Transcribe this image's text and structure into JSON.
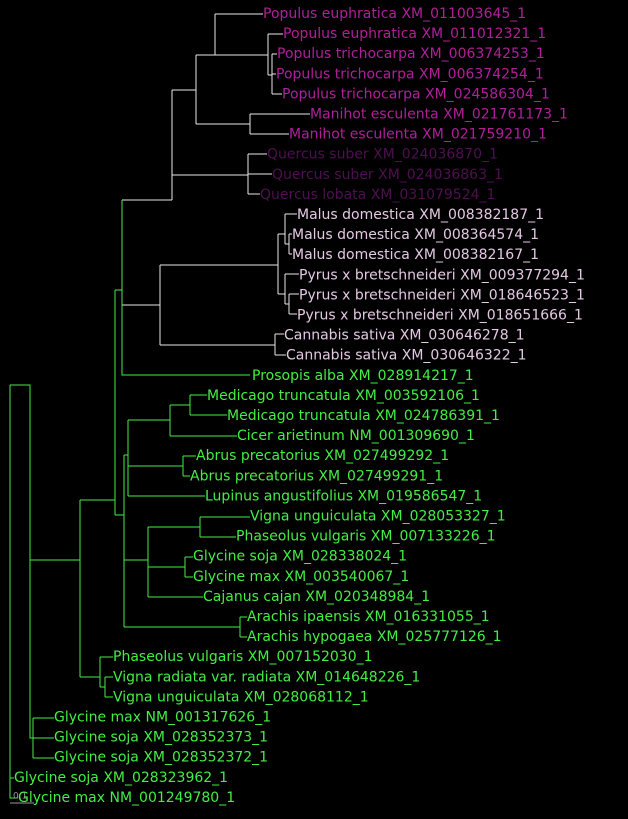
{
  "tree": {
    "scale_label": "0.1",
    "leaves": [
      {
        "label": "Populus euphratica XM_011003645_1",
        "color": "#b0209a"
      },
      {
        "label": "Populus euphratica XM_011012321_1",
        "color": "#b0209a"
      },
      {
        "label": "Populus trichocarpa XM_006374253_1",
        "color": "#b0209a"
      },
      {
        "label": "Populus trichocarpa XM_006374254_1",
        "color": "#b0209a"
      },
      {
        "label": "Populus trichocarpa XM_024586304_1",
        "color": "#b0209a"
      },
      {
        "label": "Manihot esculenta XM_021761173_1",
        "color": "#b0209a"
      },
      {
        "label": "Manihot esculenta XM_021759210_1",
        "color": "#b0209a"
      },
      {
        "label": "Quercus suber XM_024036870_1",
        "color": "#4e1050"
      },
      {
        "label": "Quercus suber XM_024036863_1",
        "color": "#4e1050"
      },
      {
        "label": "Quercus lobata XM_031079524_1",
        "color": "#4e1050"
      },
      {
        "label": "Malus domestica XM_008382187_1",
        "color": "#e4c8e4"
      },
      {
        "label": "Malus domestica XM_008364574_1",
        "color": "#e4c8e4"
      },
      {
        "label": "Malus domestica XM_008382167_1",
        "color": "#e4c8e4"
      },
      {
        "label": "Pyrus x bretschneideri XM_009377294_1",
        "color": "#e4c8e4"
      },
      {
        "label": "Pyrus x bretschneideri XM_018646523_1",
        "color": "#e4c8e4"
      },
      {
        "label": "Pyrus x bretschneideri XM_018651666_1",
        "color": "#e4c8e4"
      },
      {
        "label": "Cannabis sativa XM_030646278_1",
        "color": "#e4c8e4"
      },
      {
        "label": "Cannabis sativa XM_030646322_1",
        "color": "#e4c8e4"
      },
      {
        "label": "Prosopis alba XM_028914217_1",
        "color": "#44ee44"
      },
      {
        "label": "Medicago truncatula XM_003592106_1",
        "color": "#44ee44"
      },
      {
        "label": "Medicago truncatula XM_024786391_1",
        "color": "#44ee44"
      },
      {
        "label": "Cicer arietinum NM_001309690_1",
        "color": "#44ee44"
      },
      {
        "label": "Abrus precatorius XM_027499292_1",
        "color": "#44ee44"
      },
      {
        "label": "Abrus precatorius XM_027499291_1",
        "color": "#44ee44"
      },
      {
        "label": "Lupinus angustifolius XM_019586547_1",
        "color": "#44ee44"
      },
      {
        "label": "Vigna unguiculata XM_028053327_1",
        "color": "#44ee44"
      },
      {
        "label": "Phaseolus vulgaris XM_007133226_1",
        "color": "#44ee44"
      },
      {
        "label": "Glycine soja XM_028338024_1",
        "color": "#44ee44"
      },
      {
        "label": "Glycine max XM_003540067_1",
        "color": "#44ee44"
      },
      {
        "label": "Cajanus cajan XM_020348984_1",
        "color": "#44ee44"
      },
      {
        "label": "Arachis ipaensis XM_016331055_1",
        "color": "#44ee44"
      },
      {
        "label": "Arachis hypogaea XM_025777126_1",
        "color": "#44ee44"
      },
      {
        "label": "Phaseolus vulgaris XM_007152030_1",
        "color": "#44ee44"
      },
      {
        "label": "Vigna radiata var. radiata XM_014648226_1",
        "color": "#44ee44"
      },
      {
        "label": "Vigna unguiculata XM_028068112_1",
        "color": "#44ee44"
      },
      {
        "label": "Glycine max NM_001317626_1",
        "color": "#44ee44"
      },
      {
        "label": "Glycine soja XM_028352373_1",
        "color": "#44ee44"
      },
      {
        "label": "Glycine soja XM_028352372_1",
        "color": "#44ee44"
      },
      {
        "label": "Glycine soja XM_028323962_1",
        "color": "#44ee44"
      },
      {
        "label": "Glycine max NM_001249780_1",
        "color": "#44ee44"
      }
    ]
  }
}
